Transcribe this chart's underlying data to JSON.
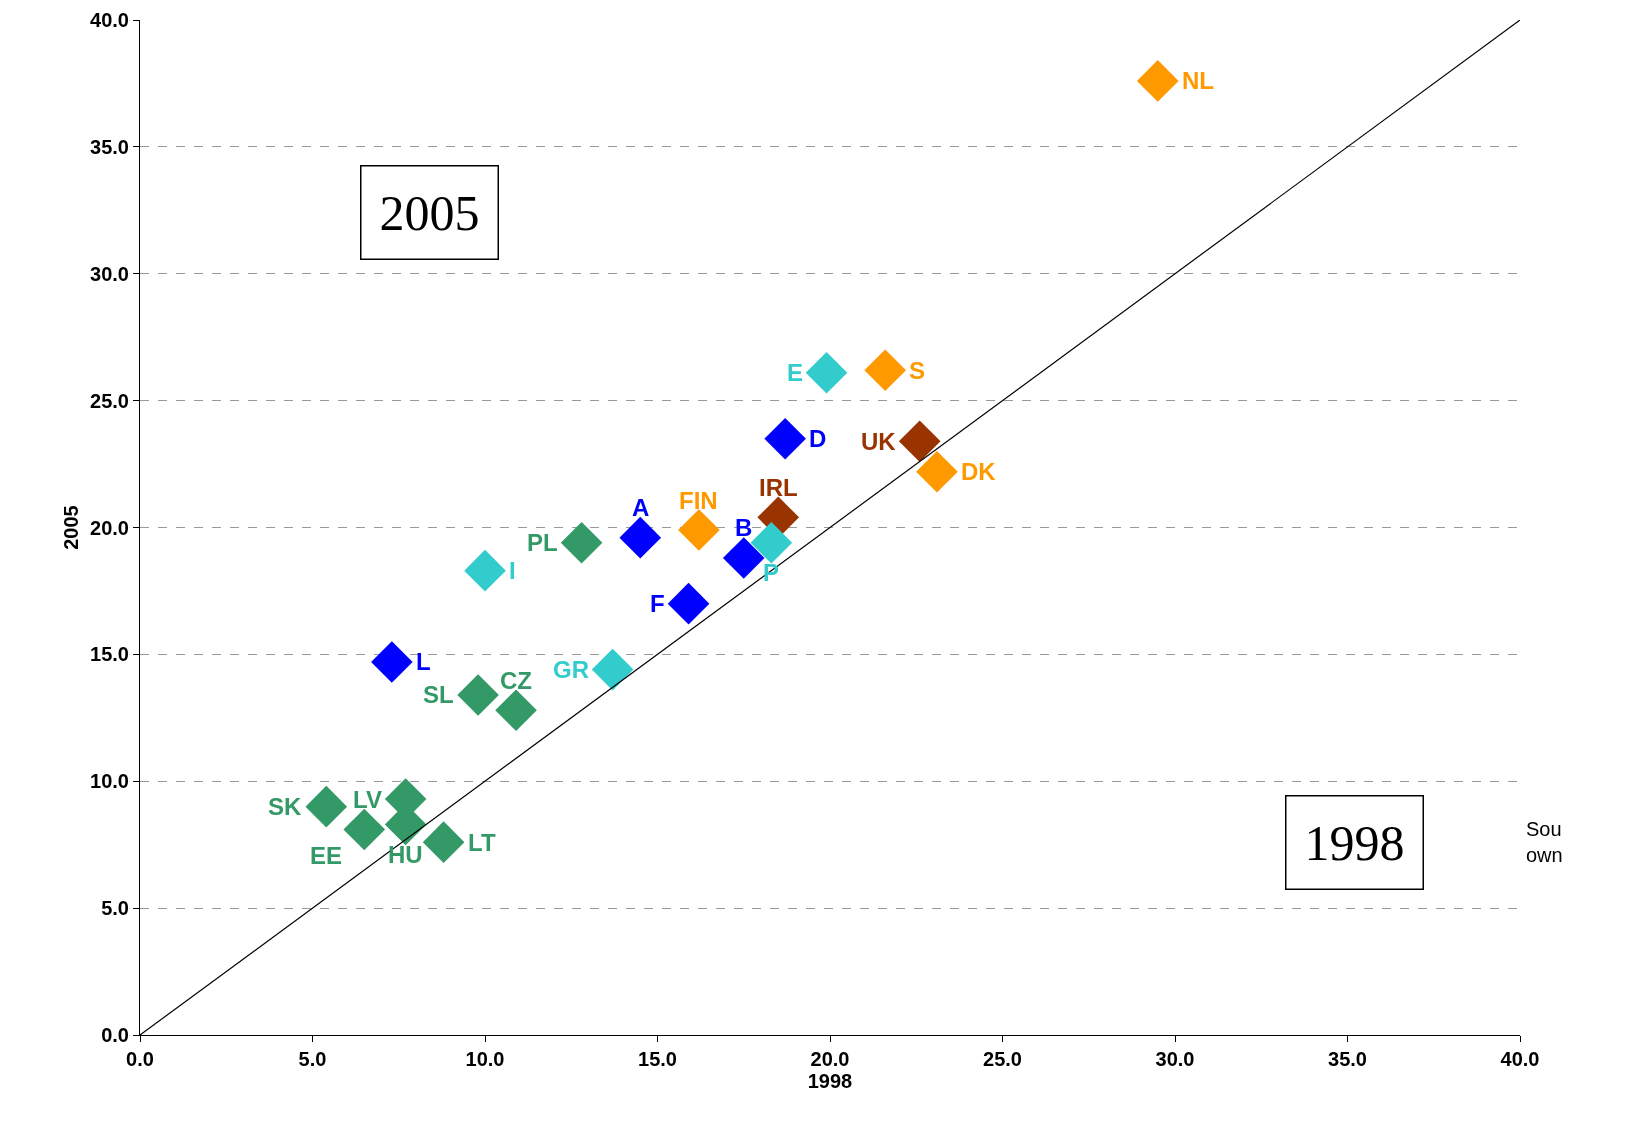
{
  "chart_data": {
    "type": "scatter",
    "xlabel": "1998",
    "ylabel": "2005",
    "marker": "diamond",
    "grid": "y",
    "xlim": [
      0,
      40
    ],
    "ylim": [
      0,
      40
    ],
    "xticks": [
      {
        "value": 0,
        "label": "0.0"
      },
      {
        "value": 5,
        "label": "5.0"
      },
      {
        "value": 10,
        "label": "10.0"
      },
      {
        "value": 15,
        "label": "15.0"
      },
      {
        "value": 20,
        "label": "20.0"
      },
      {
        "value": 25,
        "label": "25.0"
      },
      {
        "value": 30,
        "label": "30.0"
      },
      {
        "value": 35,
        "label": "35.0"
      },
      {
        "value": 40,
        "label": "40.0"
      }
    ],
    "yticks": [
      {
        "value": 0,
        "label": "0.0"
      },
      {
        "value": 5,
        "label": "5.0"
      },
      {
        "value": 10,
        "label": "10.0"
      },
      {
        "value": 15,
        "label": "15.0"
      },
      {
        "value": 20,
        "label": "20.0"
      },
      {
        "value": 25,
        "label": "25.0"
      },
      {
        "value": 30,
        "label": "30.0"
      },
      {
        "value": 35,
        "label": "35.0"
      },
      {
        "value": 40,
        "label": "40.0"
      }
    ],
    "annotations": [
      "2005",
      "1998",
      "Sou\nown"
    ],
    "series": [
      {
        "name": "NL",
        "color": "#ff9900",
        "x": [
          29.5
        ],
        "values": [
          37.6
        ]
      },
      {
        "name": "E",
        "color": "#33cccc",
        "x": [
          19.9
        ],
        "values": [
          26.1
        ]
      },
      {
        "name": "S",
        "color": "#ff9900",
        "x": [
          21.6
        ],
        "values": [
          26.2
        ]
      },
      {
        "name": "D",
        "color": "#0000ff",
        "x": [
          18.7
        ],
        "values": [
          23.5
        ]
      },
      {
        "name": "UK",
        "color": "#993300",
        "x": [
          22.6
        ],
        "values": [
          23.4
        ]
      },
      {
        "name": "DK",
        "color": "#ff9900",
        "x": [
          23.1
        ],
        "values": [
          22.2
        ]
      },
      {
        "name": "FIN",
        "color": "#ff9900",
        "x": [
          16.2
        ],
        "values": [
          19.9
        ]
      },
      {
        "name": "IRL",
        "color": "#993300",
        "x": [
          18.5
        ],
        "values": [
          20.4
        ]
      },
      {
        "name": "A",
        "color": "#0000ff",
        "x": [
          14.5
        ],
        "values": [
          19.6
        ]
      },
      {
        "name": "PL",
        "color": "#339966",
        "x": [
          12.8
        ],
        "values": [
          19.4
        ]
      },
      {
        "name": "B",
        "color": "#0000ff",
        "x": [
          17.5
        ],
        "values": [
          18.8
        ]
      },
      {
        "name": "P",
        "color": "#33cccc",
        "x": [
          18.3
        ],
        "values": [
          19.4
        ]
      },
      {
        "name": "I",
        "color": "#33cccc",
        "x": [
          10.0
        ],
        "values": [
          18.3
        ]
      },
      {
        "name": "F",
        "color": "#0000ff",
        "x": [
          15.9
        ],
        "values": [
          17.0
        ]
      },
      {
        "name": "L",
        "color": "#0000ff",
        "x": [
          7.3
        ],
        "values": [
          14.7
        ]
      },
      {
        "name": "GR",
        "color": "#33cccc",
        "x": [
          13.7
        ],
        "values": [
          14.4
        ]
      },
      {
        "name": "SL",
        "color": "#339966",
        "x": [
          9.8
        ],
        "values": [
          13.4
        ]
      },
      {
        "name": "CZ",
        "color": "#339966",
        "x": [
          10.9
        ],
        "values": [
          12.8
        ]
      },
      {
        "name": "SK",
        "color": "#339966",
        "x": [
          5.4
        ],
        "values": [
          9.0
        ]
      },
      {
        "name": "LV",
        "color": "#339966",
        "x": [
          7.7
        ],
        "values": [
          9.3
        ]
      },
      {
        "name": "HU",
        "color": "#339966",
        "x": [
          7.7
        ],
        "values": [
          8.3
        ]
      },
      {
        "name": "EE",
        "color": "#339966",
        "x": [
          6.5
        ],
        "values": [
          8.1
        ]
      },
      {
        "name": "LT",
        "color": "#339966",
        "x": [
          8.8
        ],
        "values": [
          7.6
        ]
      },
      {
        "type": "line",
        "color": "#000000",
        "x": [
          0,
          40
        ],
        "values": [
          0,
          40
        ],
        "marker": "none"
      }
    ]
  }
}
